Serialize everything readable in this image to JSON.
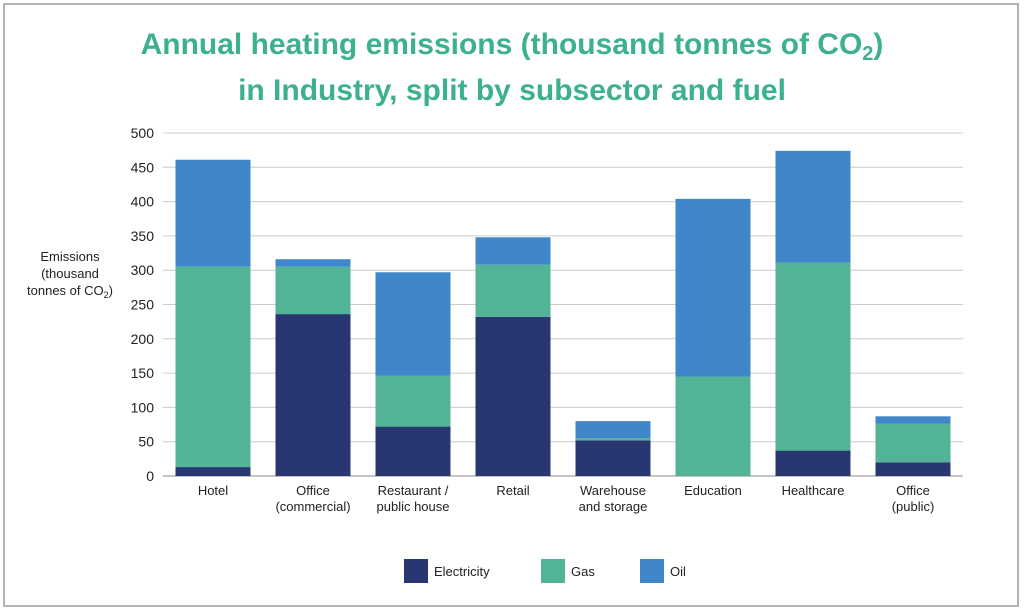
{
  "title": {
    "line1_prefix": "Annual heating emissions (thousand tonnes of CO",
    "line1_sub": "2",
    "line1_suffix": ")",
    "line2": "in Industry, split by subsector and fuel"
  },
  "colors": {
    "title": "#3cb08f",
    "electricity": "#283772",
    "gas": "#52b396",
    "oil": "#3f87c8",
    "grid": "#cccccc",
    "frame": "#b3b3b3"
  },
  "chart_data": {
    "type": "bar",
    "stacked": true,
    "ylabel_lines": [
      "Emissions",
      "(thousand",
      "tonnes of CO"
    ],
    "ylabel_sub": "2",
    "ylabel_suffix": ")",
    "ylim": [
      0,
      500
    ],
    "yticks": [
      0,
      50,
      100,
      150,
      200,
      250,
      300,
      350,
      400,
      450,
      500
    ],
    "grid": true,
    "legend_position": "bottom-center",
    "categories": [
      [
        "Hotel"
      ],
      [
        "Office",
        "(commercial)"
      ],
      [
        "Restaurant /",
        "public house"
      ],
      [
        "Retail"
      ],
      [
        "Warehouse",
        "and storage"
      ],
      [
        "Education"
      ],
      [
        "Healthcare"
      ],
      [
        "Office",
        "(public)"
      ]
    ],
    "series": [
      {
        "name": "Electricity",
        "values": [
          13,
          236,
          72,
          232,
          52,
          0,
          37,
          20
        ]
      },
      {
        "name": "Gas",
        "values": [
          292,
          69,
          74,
          76,
          3,
          145,
          274,
          56
        ]
      },
      {
        "name": "Oil",
        "values": [
          156,
          11,
          151,
          40,
          25,
          259,
          163,
          11
        ]
      }
    ]
  }
}
